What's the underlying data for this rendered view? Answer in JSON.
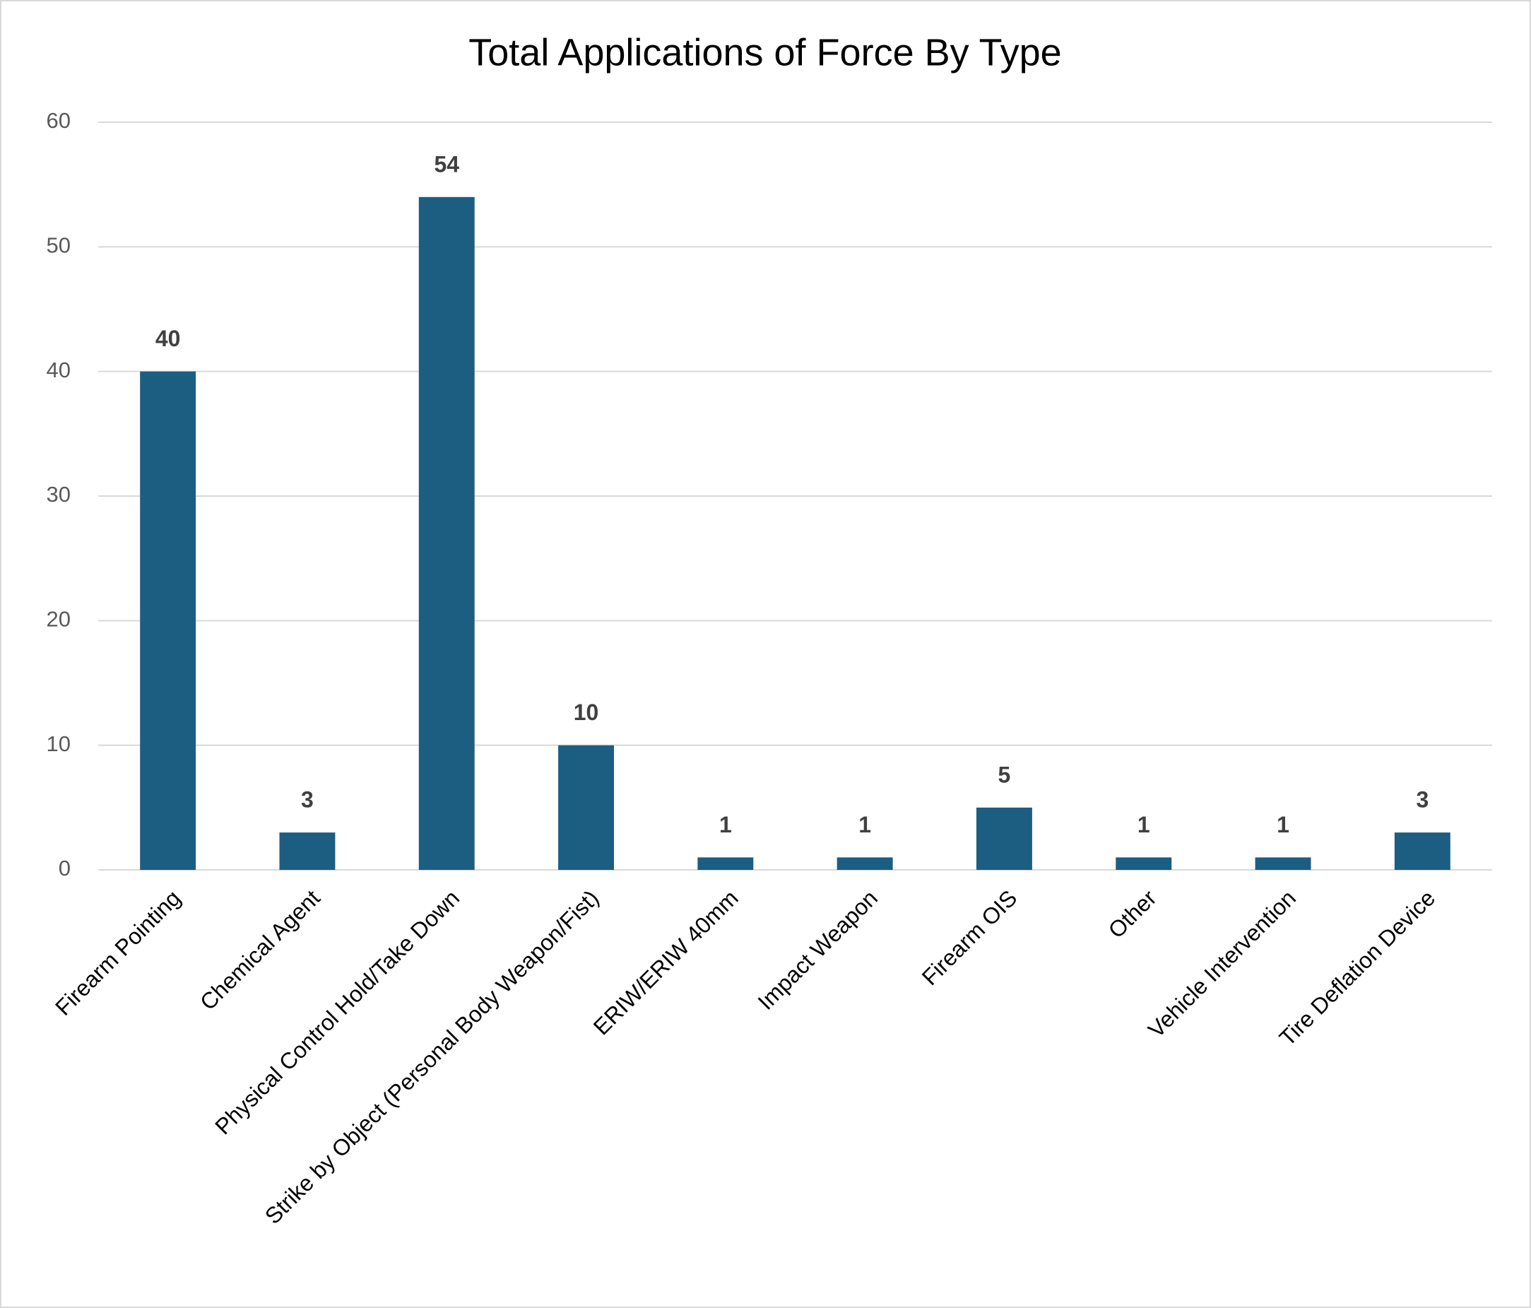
{
  "chart_data": {
    "type": "bar",
    "title": "Total Applications of Force By Type",
    "categories": [
      "Firearm Pointing",
      "Chemical Agent",
      "Physical Control Hold/Take Down",
      "Strike by Object (Personal Body Weapon/Fist)",
      "ERIW/ERIW 40mm",
      "Impact Weapon",
      "Firearm OIS",
      "Other",
      "Vehicle Intervention",
      "Tire Deflation Device"
    ],
    "values": [
      40,
      3,
      54,
      10,
      1,
      1,
      5,
      1,
      1,
      3
    ],
    "color": "#1b5e82",
    "ylim": [
      0,
      60
    ],
    "yticks": [
      0,
      10,
      20,
      30,
      40,
      50,
      60
    ],
    "grid": true
  }
}
